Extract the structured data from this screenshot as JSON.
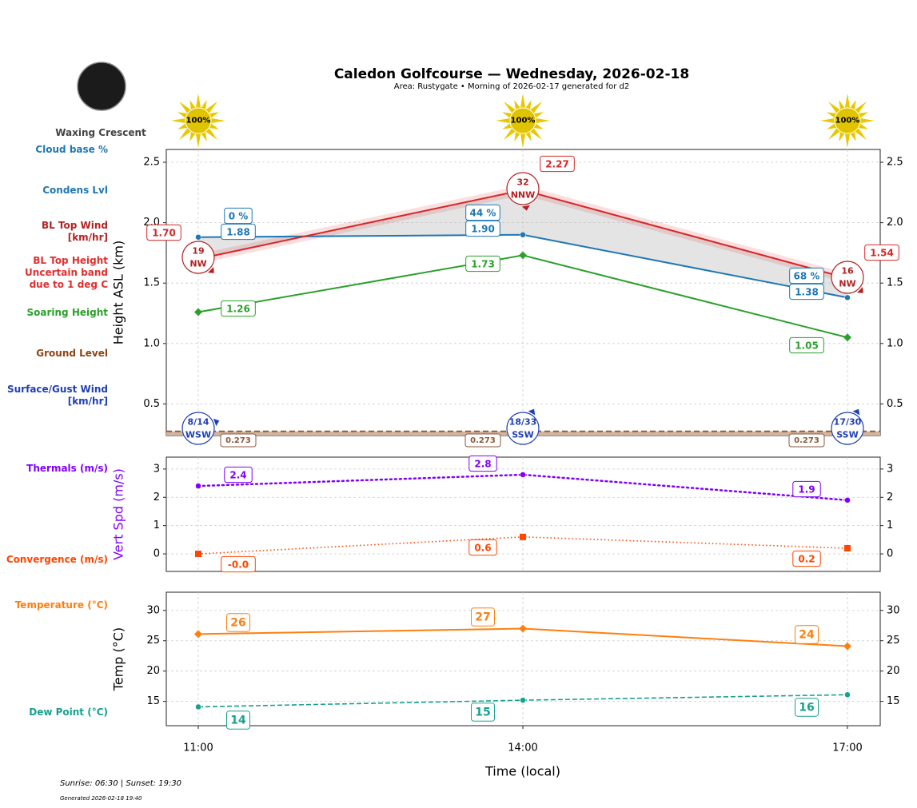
{
  "title": "Caledon Golfcourse — Wednesday, 2026-02-18",
  "subtitle": "Area: Rustygate • Morning of 2026-02-17 generated for d2",
  "moon_phase": "Waxing Crescent",
  "sunrise_sunset": "Sunrise: 06:30 | Sunset: 19:30",
  "generated": "Generated 2026-02-18 19:40",
  "left_labels": {
    "cloud_base": "Cloud base %",
    "condens": "Condens Lvl",
    "bl_wind": "BL Top Wind\n[km/hr]",
    "bl_height": "BL Top Height\nUncertain band\ndue to 1 deg C",
    "soaring": "Soaring Height",
    "ground": "Ground Level",
    "surface_wind": "Surface/Gust Wind\n[km/hr]",
    "thermals": "Thermals (m/s)",
    "convergence": "Convergence (m/s)",
    "temperature": "Temperature (°C)",
    "dew": "Dew Point (°C)"
  },
  "colors": {
    "bl_top": "#d62728",
    "cloud": "#1f77b4",
    "soaring": "#2ca02c",
    "ground": "#8b4513",
    "surface": "#1f3fb4",
    "thermal": "#8000ff",
    "convergence": "#ff4500",
    "temp": "#ff7f0e",
    "dew": "#17a090"
  },
  "chart_data": [
    {
      "type": "line",
      "ylabel": "Height ASL (km)",
      "ylim": [
        0.238,
        2.606
      ],
      "yticks": [
        0.5,
        1.0,
        1.5,
        2.0,
        2.5
      ],
      "x": [
        "11:00",
        "14:00",
        "17:00"
      ],
      "sun_percent": [
        "100%",
        "100%",
        "100%"
      ],
      "series": {
        "bl_top": [
          1.7,
          2.27,
          1.54
        ],
        "cloud_base": [
          1.88,
          1.9,
          1.38
        ],
        "cloud_pct": [
          "0 %",
          "44 %",
          "68 %"
        ],
        "soaring": [
          1.26,
          1.73,
          1.05
        ],
        "ground": [
          0.273,
          0.273,
          0.273
        ]
      },
      "bl_wind": [
        {
          "speed": "19",
          "dir": "NW"
        },
        {
          "speed": "32",
          "dir": "NNW"
        },
        {
          "speed": "16",
          "dir": "NW"
        }
      ],
      "surface_wind": [
        {
          "speed": "8/14",
          "dir": "WSW"
        },
        {
          "speed": "18/33",
          "dir": "SSW"
        },
        {
          "speed": "17/30",
          "dir": "SSW"
        }
      ],
      "grid": true
    },
    {
      "type": "line",
      "ylabel": "Vert Spd (m/s)",
      "ylim": [
        -0.62,
        3.42
      ],
      "yticks": [
        0,
        1,
        2,
        3
      ],
      "series": {
        "thermals": [
          2.4,
          2.8,
          1.9
        ],
        "convergence": [
          0.0,
          0.6,
          0.2
        ],
        "convergence_labels": [
          "-0.0",
          "0.6",
          "0.2"
        ]
      },
      "grid": true
    },
    {
      "type": "line",
      "ylabel": "Temp (°C)",
      "xlabel": "Time (local)",
      "ylim": [
        11,
        33
      ],
      "yticks": [
        15,
        20,
        25,
        30
      ],
      "series": {
        "temperature": [
          26.1,
          27.0,
          24.1
        ],
        "temperature_labels": [
          "26",
          "27",
          "24"
        ],
        "dew_point": [
          14.1,
          15.2,
          16.1
        ],
        "dew_labels": [
          "14",
          "15",
          "16"
        ]
      },
      "grid": true
    }
  ]
}
